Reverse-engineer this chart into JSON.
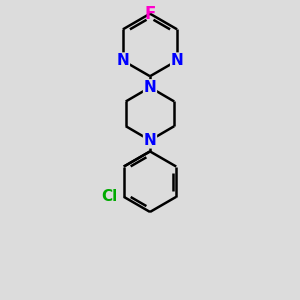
{
  "background_color": "#dcdcdc",
  "bond_color": "#000000",
  "atom_colors": {
    "N": "#0000ff",
    "F": "#ff00cc",
    "Cl": "#00aa00"
  },
  "bond_width": 1.8,
  "font_size": 11,
  "figsize": [
    3.0,
    3.0
  ],
  "dpi": 100
}
